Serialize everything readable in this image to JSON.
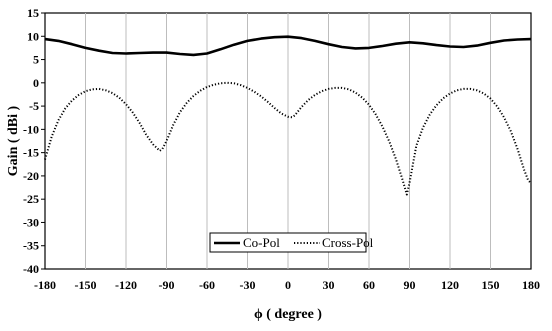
{
  "chart_data": {
    "type": "line",
    "title": "",
    "xlabel": "ϕ ( degree )",
    "ylabel": "Gain ( dBi )",
    "xlim": [
      -180,
      180
    ],
    "ylim": [
      -40,
      15
    ],
    "xticks": [
      -180,
      -150,
      -120,
      -90,
      -60,
      -30,
      0,
      30,
      60,
      90,
      120,
      150,
      180
    ],
    "yticks": [
      15,
      10,
      5,
      0,
      -5,
      -10,
      -15,
      -20,
      -25,
      -30,
      -35,
      -40
    ],
    "grid": "vertical",
    "legend": "bottom-center",
    "series": [
      {
        "name": "Co-Pol",
        "style": "solid",
        "color": "#000000",
        "x": [
          -180,
          -170,
          -160,
          -150,
          -140,
          -130,
          -120,
          -110,
          -100,
          -90,
          -80,
          -70,
          -60,
          -50,
          -40,
          -30,
          -20,
          -10,
          0,
          10,
          20,
          30,
          40,
          50,
          60,
          70,
          80,
          90,
          100,
          110,
          120,
          130,
          140,
          150,
          160,
          170,
          180
        ],
        "y": [
          9.4,
          9.0,
          8.3,
          7.5,
          6.9,
          6.4,
          6.3,
          6.4,
          6.5,
          6.5,
          6.2,
          6.0,
          6.3,
          7.2,
          8.2,
          9.0,
          9.5,
          9.8,
          9.9,
          9.6,
          9.0,
          8.3,
          7.7,
          7.4,
          7.5,
          7.9,
          8.4,
          8.7,
          8.5,
          8.1,
          7.8,
          7.7,
          8.0,
          8.6,
          9.1,
          9.3,
          9.4
        ]
      },
      {
        "name": "Cross-Pol",
        "style": "dotted",
        "color": "#000000",
        "x": [
          -180,
          -175,
          -170,
          -165,
          -160,
          -155,
          -150,
          -145,
          -140,
          -135,
          -130,
          -125,
          -120,
          -115,
          -110,
          -105,
          -100,
          -95,
          -93,
          -90,
          -85,
          -80,
          -75,
          -70,
          -65,
          -60,
          -55,
          -50,
          -45,
          -40,
          -35,
          -30,
          -25,
          -20,
          -15,
          -10,
          -5,
          0,
          3,
          5,
          10,
          15,
          20,
          25,
          30,
          35,
          40,
          45,
          50,
          55,
          60,
          65,
          70,
          75,
          80,
          85,
          88,
          90,
          95,
          100,
          105,
          110,
          115,
          120,
          125,
          130,
          135,
          140,
          145,
          150,
          155,
          160,
          165,
          170,
          175,
          178,
          180
        ],
        "y": [
          -16.5,
          -11.5,
          -8.0,
          -5.5,
          -3.8,
          -2.6,
          -1.8,
          -1.4,
          -1.3,
          -1.6,
          -2.2,
          -3.2,
          -4.6,
          -6.4,
          -8.6,
          -11.2,
          -13.2,
          -14.6,
          -14.2,
          -12.5,
          -9.0,
          -6.3,
          -4.3,
          -2.8,
          -1.7,
          -0.9,
          -0.4,
          -0.1,
          0.0,
          -0.1,
          -0.5,
          -1.1,
          -1.9,
          -2.9,
          -4.1,
          -5.4,
          -6.6,
          -7.3,
          -7.4,
          -7.0,
          -5.2,
          -3.7,
          -2.6,
          -1.8,
          -1.3,
          -1.1,
          -1.1,
          -1.4,
          -2.1,
          -3.2,
          -4.7,
          -6.8,
          -9.4,
          -12.6,
          -16.4,
          -21.0,
          -24.0,
          -21.5,
          -13.5,
          -9.6,
          -6.8,
          -4.8,
          -3.3,
          -2.3,
          -1.6,
          -1.3,
          -1.3,
          -1.6,
          -2.3,
          -3.4,
          -5.1,
          -7.4,
          -10.4,
          -14.2,
          -18.8,
          -21.0,
          -21.5
        ]
      }
    ]
  }
}
